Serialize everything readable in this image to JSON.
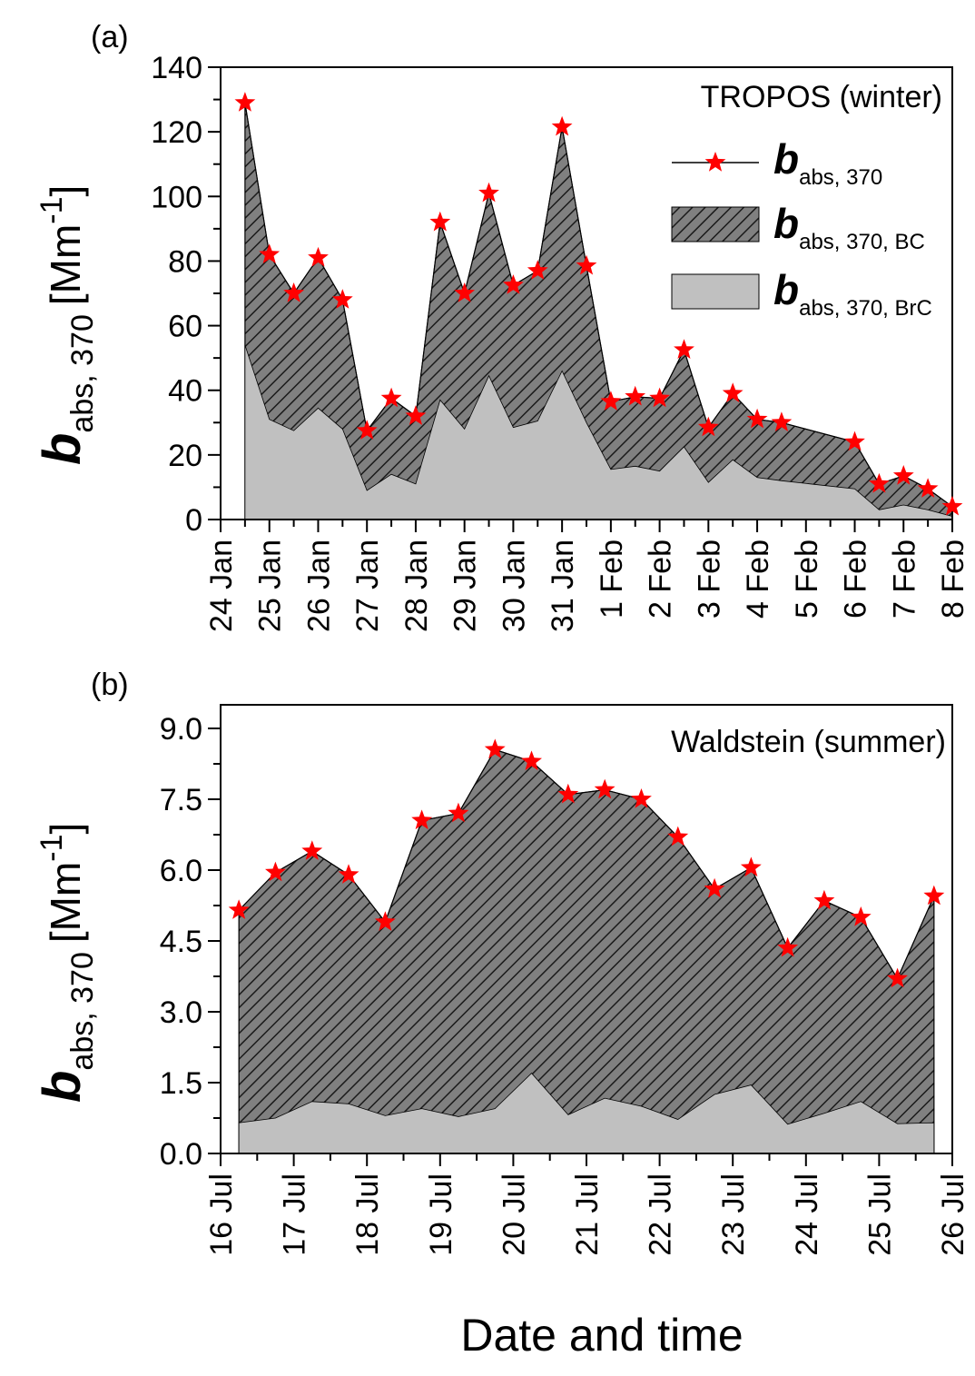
{
  "chart_data": [
    {
      "type": "area",
      "panel_label": "(a)",
      "site_label": "TROPOS (winter)",
      "xlabel": "",
      "ylabel": {
        "main": "b",
        "sub": "abs, 370",
        "unit": "[Mm",
        "unit_exp": "-1",
        "unit_close": "]"
      },
      "x_axis": {
        "min": 0,
        "max": 15,
        "tick_labels": [
          "24 Jan",
          "25 Jan",
          "26 Jan",
          "27 Jan",
          "28 Jan",
          "29 Jan",
          "30 Jan",
          "31 Jan",
          "1 Feb",
          "2 Feb",
          "3 Feb",
          "4 Feb",
          "5 Feb",
          "6 Feb",
          "7 Feb",
          "8 Feb"
        ]
      },
      "y_axis": {
        "min": 0,
        "max": 140,
        "major_step": 20,
        "minor_step": 10,
        "tick_labels": [
          "0",
          "20",
          "40",
          "60",
          "80",
          "100",
          "120",
          "140"
        ]
      },
      "legend": {
        "placement": "upper-right",
        "entries": [
          {
            "main": "b",
            "sub": "abs, 370",
            "style": "line-star"
          },
          {
            "main": "b",
            "sub": "abs, 370, BC",
            "style": "hatched-area"
          },
          {
            "main": "b",
            "sub": "abs, 370, BrC",
            "style": "gray-area"
          }
        ]
      },
      "series": [
        {
          "key": "total",
          "x": [
            0.5,
            1.0,
            1.5,
            2.0,
            2.5,
            3.0,
            3.5,
            4.0,
            4.5,
            5.0,
            5.5,
            6.0,
            6.5,
            7.0,
            7.5,
            8.0,
            8.5,
            9.0,
            9.5,
            10.0,
            10.5,
            11.0,
            11.5,
            13.0,
            13.5,
            14.0,
            14.5,
            15.0
          ],
          "values": [
            129,
            82,
            70,
            81,
            68,
            27.5,
            37.5,
            32,
            92,
            70,
            101,
            72.5,
            77,
            121.5,
            78.5,
            36.5,
            38,
            37.5,
            52.5,
            28.5,
            39,
            31,
            30,
            24,
            11,
            13.5,
            9.5,
            4
          ]
        },
        {
          "key": "brc",
          "x": [
            0.5,
            1.0,
            1.5,
            2.0,
            2.5,
            3.0,
            3.5,
            4.0,
            4.5,
            5.0,
            5.5,
            6.0,
            6.5,
            7.0,
            7.5,
            8.0,
            8.5,
            9.0,
            9.5,
            10.0,
            10.5,
            11.0,
            11.5,
            13.0,
            13.5,
            14.0,
            14.5,
            15.0
          ],
          "values": [
            54,
            31,
            27.5,
            34.5,
            28,
            9,
            14,
            11,
            37,
            28,
            44.5,
            28.5,
            30.5,
            46,
            30,
            15.5,
            16.5,
            15,
            22.5,
            11.5,
            18.5,
            13,
            12,
            9.5,
            3,
            4.5,
            3,
            1
          ]
        }
      ]
    },
    {
      "type": "area",
      "panel_label": "(b)",
      "site_label": "Waldstein (summer)",
      "xlabel": "Date and time",
      "ylabel": {
        "main": "b",
        "sub": "abs, 370",
        "unit": "[Mm",
        "unit_exp": "-1",
        "unit_close": "]"
      },
      "x_axis": {
        "min": 0,
        "max": 10,
        "tick_labels": [
          "16 Jul",
          "17 Jul",
          "18 Jul",
          "19 Jul",
          "20 Jul",
          "21 Jul",
          "22 Jul",
          "23 Jul",
          "24 Jul",
          "25 Jul",
          "26 Jul"
        ]
      },
      "y_axis": {
        "min": 0,
        "max": 9.5,
        "major_step": 1.5,
        "minor_step": 0.75,
        "tick_labels": [
          "0.0",
          "1.5",
          "3.0",
          "4.5",
          "6.0",
          "7.5",
          "9.0"
        ]
      },
      "series": [
        {
          "key": "total",
          "x": [
            0.25,
            0.75,
            1.25,
            1.75,
            2.25,
            2.75,
            3.25,
            3.75,
            4.25,
            4.75,
            5.25,
            5.75,
            6.25,
            6.75,
            7.25,
            7.75,
            8.25,
            8.75,
            9.25,
            9.75
          ],
          "values": [
            5.15,
            5.95,
            6.4,
            5.9,
            4.9,
            7.05,
            7.2,
            8.55,
            8.3,
            7.6,
            7.7,
            7.5,
            6.7,
            5.6,
            6.05,
            4.35,
            5.35,
            5.0,
            3.7,
            5.45
          ]
        },
        {
          "key": "brc",
          "x": [
            0.25,
            0.75,
            1.25,
            1.75,
            2.25,
            2.75,
            3.25,
            3.75,
            4.25,
            4.75,
            5.25,
            5.75,
            6.25,
            6.75,
            7.25,
            7.75,
            8.25,
            8.75,
            9.25,
            9.75
          ],
          "values": [
            0.65,
            0.75,
            1.1,
            1.05,
            0.8,
            0.95,
            0.78,
            0.95,
            1.7,
            0.82,
            1.17,
            1.0,
            0.72,
            1.25,
            1.45,
            0.62,
            0.85,
            1.1,
            0.63,
            0.65
          ]
        }
      ]
    }
  ],
  "colors": {
    "marker": "#ff0000",
    "bc_fill": "#808080",
    "brc_fill": "#c0c0c0",
    "hatch": "#1a1a1a"
  }
}
